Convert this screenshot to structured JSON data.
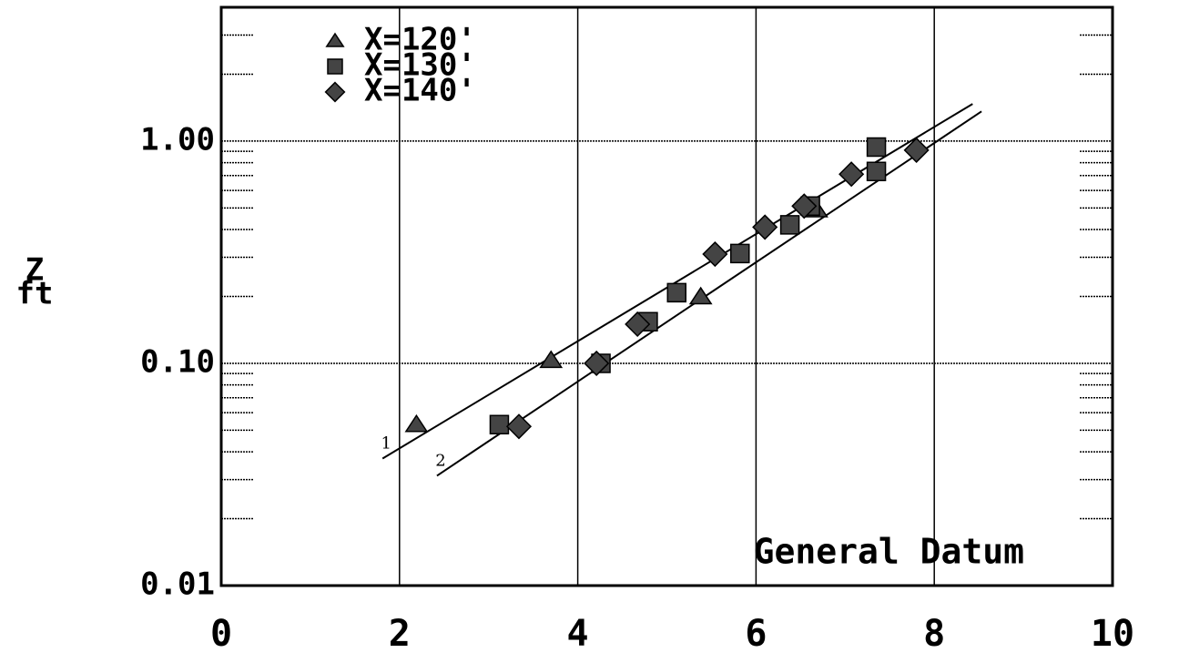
{
  "chart_data": {
    "type": "scatter",
    "ylabel": [
      "Z",
      "ft"
    ],
    "annotation": "General Datum",
    "xlim": [
      0,
      10
    ],
    "xticks": [
      0,
      2,
      4,
      6,
      8,
      10
    ],
    "ylim": [
      0.01,
      4
    ],
    "log_y": true,
    "yticks": [
      {
        "value": 0.01,
        "label": "0.01"
      },
      {
        "value": 0.1,
        "label": "0.10"
      },
      {
        "value": 1,
        "label": "1.00"
      }
    ],
    "yminor_ticks": [
      0.02,
      0.03,
      0.04,
      0.05,
      0.06,
      0.07,
      0.08,
      0.09,
      0.2,
      0.3,
      0.4,
      0.5,
      0.6,
      0.7,
      0.8,
      0.9,
      2,
      3
    ],
    "grid": true,
    "legend": "upper left",
    "series": [
      {
        "name": "X=120'",
        "marker": "triangle",
        "color": "#444",
        "x": [
          2.19,
          3.7,
          5.38,
          6.68
        ],
        "values": [
          0.053,
          0.103,
          0.199,
          0.49
        ]
      },
      {
        "name": "X=130'",
        "marker": "square",
        "color": "#444",
        "x": [
          3.12,
          4.26,
          4.79,
          5.11,
          5.82,
          6.38,
          6.61,
          7.35,
          7.35
        ],
        "values": [
          0.053,
          0.1,
          0.154,
          0.208,
          0.312,
          0.42,
          0.51,
          0.73,
          0.94
        ]
      },
      {
        "name": "X=140'",
        "marker": "diamond",
        "color": "#444",
        "x": [
          3.34,
          4.21,
          4.67,
          5.54,
          6.1,
          6.54,
          7.07,
          7.8
        ],
        "values": [
          0.052,
          0.1,
          0.15,
          0.31,
          0.41,
          0.51,
          0.71,
          0.91
        ]
      }
    ],
    "lines": [
      {
        "label": "1",
        "x": [
          1.81,
          8.43
        ],
        "values": [
          0.0373,
          1.47
        ]
      },
      {
        "label": "2",
        "x": [
          2.42,
          8.53
        ],
        "values": [
          0.0312,
          1.36
        ]
      }
    ]
  }
}
